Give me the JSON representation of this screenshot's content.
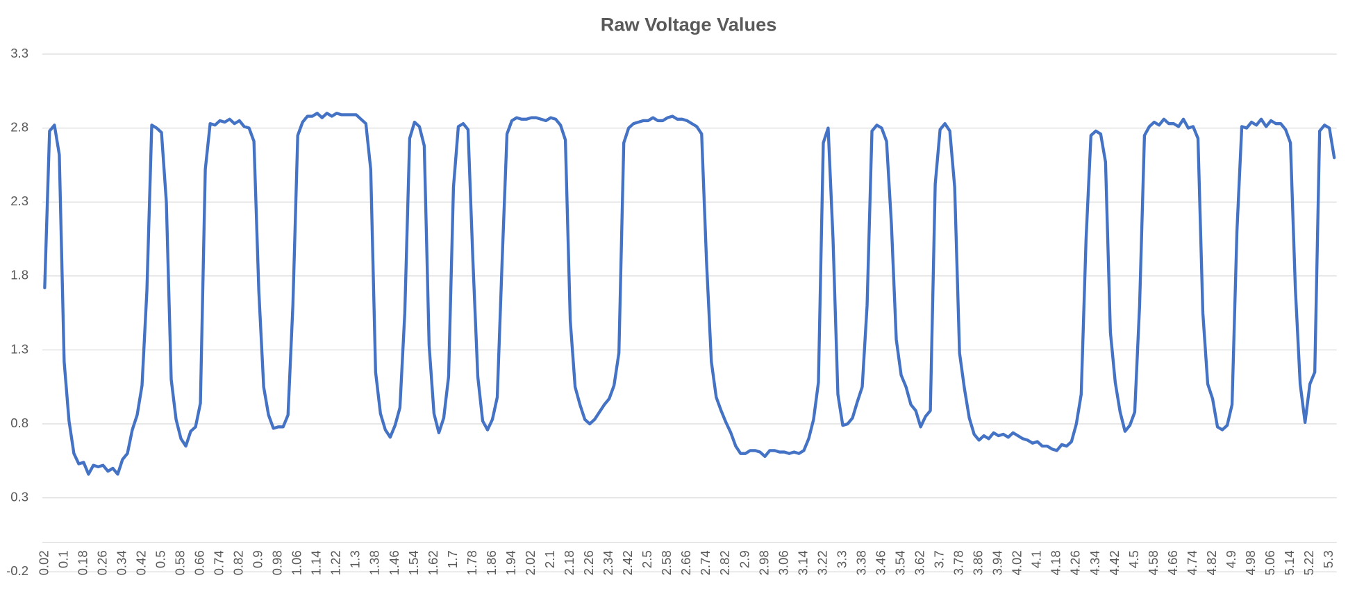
{
  "chart_data": {
    "type": "line",
    "title": "Raw Voltage Values",
    "color": "#4472c4",
    "grid": true,
    "ylim": [
      -0.2,
      3.3
    ],
    "yticks": [
      -0.2,
      0.3,
      0.8,
      1.3,
      1.8,
      2.3,
      2.8,
      3.3
    ],
    "categories": [
      "0.02",
      null,
      null,
      null,
      "0.1",
      null,
      null,
      null,
      "0.18",
      null,
      null,
      null,
      "0.26",
      null,
      null,
      null,
      "0.34",
      null,
      null,
      null,
      "0.42",
      null,
      null,
      null,
      "0.5",
      null,
      null,
      null,
      "0.58",
      null,
      null,
      null,
      "0.66",
      null,
      null,
      null,
      "0.74",
      null,
      null,
      null,
      "0.82",
      null,
      null,
      null,
      "0.9",
      null,
      null,
      null,
      "0.98",
      null,
      null,
      null,
      "1.06",
      null,
      null,
      null,
      "1.14",
      null,
      null,
      null,
      "1.22",
      null,
      null,
      null,
      "1.3",
      null,
      null,
      null,
      "1.38",
      null,
      null,
      null,
      "1.46",
      null,
      null,
      null,
      "1.54",
      null,
      null,
      null,
      "1.62",
      null,
      null,
      null,
      "1.7",
      null,
      null,
      null,
      "1.78",
      null,
      null,
      null,
      "1.86",
      null,
      null,
      null,
      "1.94",
      null,
      null,
      null,
      "2.02",
      null,
      null,
      null,
      "2.1",
      null,
      null,
      null,
      "2.18",
      null,
      null,
      null,
      "2.26",
      null,
      null,
      null,
      "2.34",
      null,
      null,
      null,
      "2.42",
      null,
      null,
      null,
      "2.5",
      null,
      null,
      null,
      "2.58",
      null,
      null,
      null,
      "2.66",
      null,
      null,
      null,
      "2.74",
      null,
      null,
      null,
      "2.82",
      null,
      null,
      null,
      "2.9",
      null,
      null,
      null,
      "2.98",
      null,
      null,
      null,
      "3.06",
      null,
      null,
      null,
      "3.14",
      null,
      null,
      null,
      "3.22",
      null,
      null,
      null,
      "3.3",
      null,
      null,
      null,
      "3.38",
      null,
      null,
      null,
      "3.46",
      null,
      null,
      null,
      "3.54",
      null,
      null,
      null,
      "3.62",
      null,
      null,
      null,
      "3.7",
      null,
      null,
      null,
      "3.78",
      null,
      null,
      null,
      "3.86",
      null,
      null,
      null,
      "3.94",
      null,
      null,
      null,
      "4.02",
      null,
      null,
      null,
      "4.1",
      null,
      null,
      null,
      "4.18",
      null,
      null,
      null,
      "4.26",
      null,
      null,
      null,
      "4.34",
      null,
      null,
      null,
      "4.42",
      null,
      null,
      null,
      "4.5",
      null,
      null,
      null,
      "4.58",
      null,
      null,
      null,
      "4.66",
      null,
      null,
      null,
      "4.74",
      null,
      null,
      null,
      "4.82",
      null,
      null,
      null,
      "4.9",
      null,
      null,
      null,
      "4.98",
      null,
      null,
      null,
      "5.06",
      null,
      null,
      null,
      "5.14",
      null,
      null,
      null,
      "5.22",
      null,
      null,
      null,
      "5.3",
      null
    ],
    "values": [
      1.72,
      2.78,
      2.82,
      2.62,
      1.22,
      0.82,
      0.6,
      0.53,
      0.54,
      0.46,
      0.52,
      0.51,
      0.52,
      0.48,
      0.5,
      0.46,
      0.56,
      0.6,
      0.76,
      0.86,
      1.06,
      1.7,
      2.82,
      2.8,
      2.77,
      2.3,
      1.1,
      0.83,
      0.7,
      0.65,
      0.75,
      0.78,
      0.94,
      2.52,
      2.83,
      2.82,
      2.85,
      2.84,
      2.86,
      2.83,
      2.85,
      2.81,
      2.8,
      2.71,
      1.7,
      1.05,
      0.86,
      0.77,
      0.78,
      0.78,
      0.86,
      1.6,
      2.75,
      2.84,
      2.88,
      2.88,
      2.9,
      2.87,
      2.9,
      2.88,
      2.9,
      2.89,
      2.89,
      2.89,
      2.89,
      2.86,
      2.83,
      2.52,
      1.15,
      0.87,
      0.76,
      0.71,
      0.79,
      0.91,
      1.55,
      2.73,
      2.84,
      2.81,
      2.68,
      1.33,
      0.87,
      0.74,
      0.84,
      1.12,
      2.4,
      2.81,
      2.83,
      2.79,
      1.9,
      1.12,
      0.82,
      0.76,
      0.83,
      0.98,
      1.9,
      2.76,
      2.85,
      2.87,
      2.86,
      2.86,
      2.87,
      2.87,
      2.86,
      2.85,
      2.87,
      2.86,
      2.82,
      2.72,
      1.5,
      1.05,
      0.93,
      0.83,
      0.8,
      0.83,
      0.88,
      0.93,
      0.97,
      1.06,
      1.28,
      2.7,
      2.8,
      2.83,
      2.84,
      2.85,
      2.85,
      2.87,
      2.85,
      2.85,
      2.87,
      2.88,
      2.86,
      2.86,
      2.85,
      2.83,
      2.81,
      2.76,
      1.9,
      1.22,
      0.98,
      0.89,
      0.81,
      0.74,
      0.65,
      0.6,
      0.6,
      0.62,
      0.62,
      0.61,
      0.58,
      0.62,
      0.62,
      0.61,
      0.61,
      0.6,
      0.61,
      0.6,
      0.62,
      0.7,
      0.83,
      1.08,
      2.7,
      2.8,
      2.05,
      1.0,
      0.79,
      0.8,
      0.84,
      0.95,
      1.05,
      1.6,
      2.78,
      2.82,
      2.8,
      2.71,
      2.15,
      1.37,
      1.13,
      1.05,
      0.93,
      0.89,
      0.78,
      0.85,
      0.89,
      2.42,
      2.79,
      2.83,
      2.78,
      2.4,
      1.28,
      1.04,
      0.84,
      0.73,
      0.69,
      0.72,
      0.7,
      0.74,
      0.72,
      0.73,
      0.71,
      0.74,
      0.72,
      0.7,
      0.69,
      0.67,
      0.68,
      0.65,
      0.65,
      0.63,
      0.62,
      0.66,
      0.65,
      0.68,
      0.8,
      1.0,
      2.05,
      2.75,
      2.78,
      2.76,
      2.57,
      1.42,
      1.08,
      0.88,
      0.75,
      0.79,
      0.88,
      1.6,
      2.75,
      2.81,
      2.84,
      2.82,
      2.86,
      2.83,
      2.83,
      2.81,
      2.86,
      2.8,
      2.81,
      2.73,
      1.55,
      1.07,
      0.97,
      0.78,
      0.76,
      0.79,
      0.93,
      2.1,
      2.81,
      2.8,
      2.84,
      2.82,
      2.86,
      2.81,
      2.85,
      2.83,
      2.83,
      2.79,
      2.7,
      1.72,
      1.07,
      0.81,
      1.07,
      1.15,
      2.78,
      2.82,
      2.8,
      2.6
    ]
  }
}
